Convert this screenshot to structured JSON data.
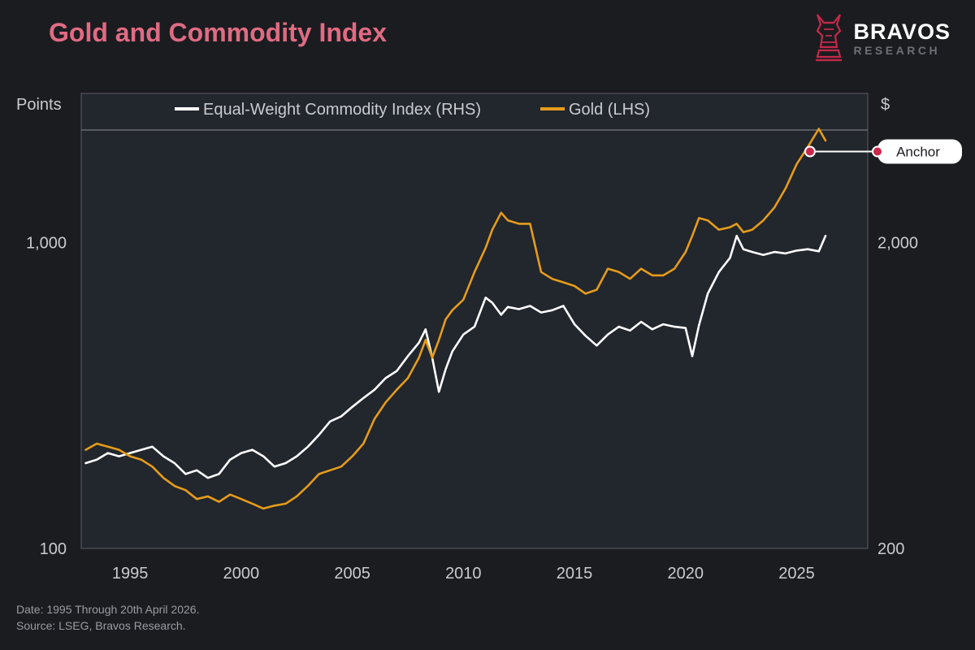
{
  "title": "Gold and Commodity Index",
  "brand": {
    "name": "BRAVOS",
    "subtitle": "RESEARCH",
    "logo_icon": "bull-knight-icon"
  },
  "footer": {
    "date_note": "Date: 1995 Through 20th April 2026.",
    "source_note": "Source: LSEG, Bravos Research."
  },
  "colors": {
    "background": "#1b1c20",
    "plot": "#22262d",
    "gold": "#e69c1a",
    "commodity": "#ffffff",
    "title": "#e06b82",
    "anchor": "#c8284a"
  },
  "chart_data": {
    "type": "line",
    "title": "Gold and Commodity Index",
    "left_axis": {
      "label": "Points",
      "scale": "log",
      "range": [
        100,
        2300
      ],
      "ticks": [
        100,
        1000
      ],
      "tick_labels": [
        "100",
        "1,000"
      ]
    },
    "right_axis": {
      "label": "$",
      "scale": "log",
      "range": [
        200,
        4600
      ],
      "ticks": [
        200,
        2000
      ],
      "tick_labels": [
        "200",
        "2,000"
      ]
    },
    "x_axis": {
      "range": [
        1992.8,
        2028.2
      ],
      "ticks": [
        1995,
        2000,
        2005,
        2010,
        2015,
        2020,
        2025
      ],
      "tick_labels": [
        "1995",
        "2000",
        "2005",
        "2010",
        "2015",
        "2020",
        "2025"
      ]
    },
    "legend": {
      "placement": "top",
      "entries": [
        "Equal-Weight Commodity Index (RHS)",
        "Gold (LHS)"
      ]
    },
    "grid": false,
    "series": [
      {
        "name": "Equal-Weight Commodity Index (RHS)",
        "color": "#ffffff",
        "axis": "right",
        "x": [
          1993.0,
          1993.5,
          1994.0,
          1994.5,
          1995.0,
          1995.5,
          1996.0,
          1996.5,
          1997.0,
          1997.5,
          1998.0,
          1998.5,
          1999.0,
          1999.5,
          2000.0,
          2000.5,
          2001.0,
          2001.5,
          2002.0,
          2002.5,
          2003.0,
          2003.5,
          2004.0,
          2004.5,
          2005.0,
          2005.5,
          2006.0,
          2006.5,
          2007.0,
          2007.5,
          2008.0,
          2008.3,
          2008.6,
          2008.9,
          2009.2,
          2009.5,
          2010.0,
          2010.5,
          2011.0,
          2011.3,
          2011.7,
          2012.0,
          2012.5,
          2013.0,
          2013.5,
          2014.0,
          2014.5,
          2015.0,
          2015.5,
          2016.0,
          2016.5,
          2017.0,
          2017.5,
          2018.0,
          2018.5,
          2019.0,
          2019.5,
          2020.0,
          2020.3,
          2020.6,
          2021.0,
          2021.5,
          2022.0,
          2022.3,
          2022.6,
          2023.0,
          2023.5,
          2024.0,
          2024.5,
          2025.0,
          2025.5,
          2026.0,
          2026.3
        ],
        "values": [
          380,
          390,
          410,
          400,
          410,
          420,
          430,
          400,
          380,
          350,
          360,
          340,
          350,
          390,
          410,
          420,
          400,
          370,
          380,
          400,
          430,
          470,
          520,
          540,
          580,
          620,
          660,
          720,
          760,
          850,
          940,
          1040,
          840,
          650,
          770,
          880,
          1000,
          1060,
          1320,
          1270,
          1160,
          1230,
          1210,
          1240,
          1180,
          1200,
          1240,
          1080,
          990,
          920,
          1000,
          1060,
          1030,
          1100,
          1040,
          1080,
          1060,
          1050,
          850,
          1070,
          1360,
          1600,
          1780,
          2100,
          1900,
          1860,
          1820,
          1860,
          1840,
          1880,
          1900,
          1870,
          2100
        ]
      },
      {
        "name": "Gold (LHS)",
        "color": "#e69c1a",
        "axis": "left",
        "x": [
          1993.0,
          1993.5,
          1994.0,
          1994.5,
          1995.0,
          1995.5,
          1996.0,
          1996.5,
          1997.0,
          1997.5,
          1998.0,
          1998.5,
          1999.0,
          1999.5,
          2000.0,
          2000.5,
          2001.0,
          2001.5,
          2002.0,
          2002.5,
          2003.0,
          2003.5,
          2004.0,
          2004.5,
          2005.0,
          2005.5,
          2006.0,
          2006.5,
          2007.0,
          2007.5,
          2008.0,
          2008.3,
          2008.6,
          2008.9,
          2009.2,
          2009.5,
          2010.0,
          2010.5,
          2011.0,
          2011.3,
          2011.7,
          2012.0,
          2012.5,
          2013.0,
          2013.5,
          2014.0,
          2014.5,
          2015.0,
          2015.5,
          2016.0,
          2016.5,
          2017.0,
          2017.5,
          2018.0,
          2018.5,
          2019.0,
          2019.5,
          2020.0,
          2020.3,
          2020.6,
          2021.0,
          2021.5,
          2022.0,
          2022.3,
          2022.6,
          2023.0,
          2023.5,
          2024.0,
          2024.5,
          2025.0,
          2025.5,
          2026.0,
          2026.3
        ],
        "values": [
          210,
          220,
          215,
          210,
          200,
          195,
          185,
          170,
          160,
          155,
          145,
          148,
          142,
          150,
          145,
          140,
          135,
          138,
          140,
          148,
          160,
          175,
          180,
          185,
          200,
          220,
          265,
          300,
          330,
          360,
          420,
          480,
          420,
          480,
          560,
          600,
          650,
          800,
          960,
          1100,
          1250,
          1180,
          1150,
          1150,
          800,
          760,
          740,
          720,
          680,
          700,
          820,
          800,
          760,
          820,
          780,
          780,
          820,
          930,
          1050,
          1200,
          1180,
          1100,
          1120,
          1150,
          1080,
          1100,
          1180,
          1300,
          1500,
          1800,
          2050,
          2350,
          2150
        ]
      }
    ],
    "annotation": {
      "label": "Anchor",
      "x": 2025.6,
      "series": "Gold (LHS)",
      "value": 1980
    }
  }
}
